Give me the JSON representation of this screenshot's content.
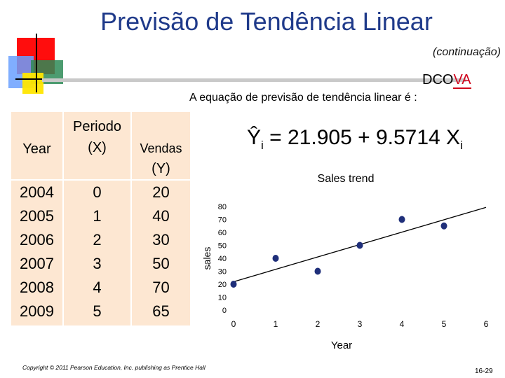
{
  "slide": {
    "title": "Previsão de Tendência Linear",
    "subtitle": "(continuação)",
    "dcova_prefix": "DCO",
    "dcova_suffix": "VA",
    "equation_label": "A equação de previsão de tendência linear é :",
    "equation": {
      "lhs": "Ŷ",
      "lhs_sub": "i",
      "eq": "= 21.905 + 9.5714 X",
      "rhs_sub": "i"
    },
    "copyright": "Copyright © 2011 Pearson Education, Inc. publishing as Prentice Hall",
    "page_number": "16-29"
  },
  "table": {
    "headers": {
      "year": "Year",
      "periodo": "Periodo",
      "x": "(X)",
      "vendas": "Vendas",
      "y": "(Y)"
    },
    "years": [
      "2004",
      "2005",
      "2006",
      "2007",
      "2008",
      "2009"
    ],
    "x": [
      "0",
      "1",
      "2",
      "3",
      "4",
      "5"
    ],
    "y": [
      "20",
      "40",
      "30",
      "50",
      "70",
      "65"
    ]
  },
  "chart_data": {
    "type": "scatter",
    "title": "Sales trend",
    "xlabel": "Year",
    "ylabel": "sales",
    "x": [
      0,
      1,
      2,
      3,
      4,
      5
    ],
    "y": [
      20,
      40,
      30,
      50,
      70,
      65
    ],
    "xlim": [
      0,
      6
    ],
    "ylim": [
      0,
      80
    ],
    "xticks": [
      "0",
      "1",
      "2",
      "3",
      "4",
      "5",
      "6"
    ],
    "yticks": [
      "0",
      "10",
      "20",
      "30",
      "40",
      "50",
      "60",
      "70",
      "80"
    ],
    "trendline": {
      "intercept": 21.905,
      "slope": 9.5714
    },
    "grid": false,
    "point_color": "#1f2f7a"
  }
}
